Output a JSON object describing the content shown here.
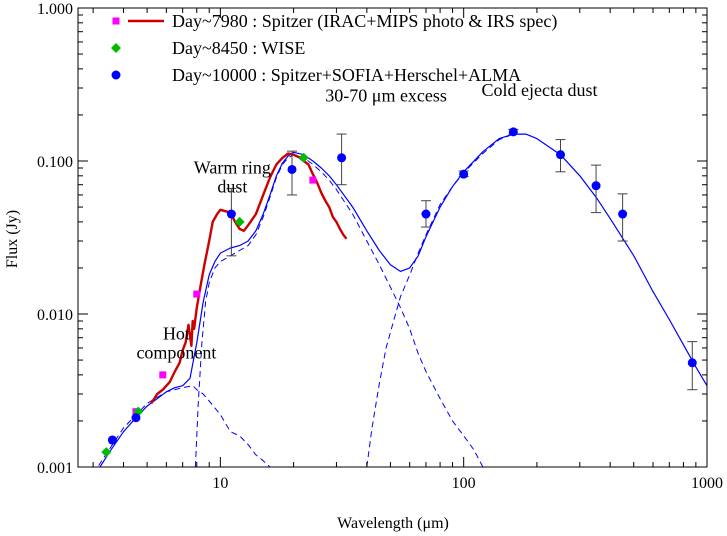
{
  "chart_data": {
    "type": "scatter",
    "xlabel": "Wavelength (μm)",
    "ylabel": "Flux (Jy)",
    "xscale": "log",
    "yscale": "log",
    "xlim": [
      2.6,
      1000
    ],
    "ylim": [
      0.001,
      1.0
    ],
    "xticks": [
      10,
      100,
      1000
    ],
    "xtick_labels": [
      "10",
      "100",
      "1000"
    ],
    "yticks": [
      0.001,
      0.01,
      0.1,
      1.0
    ],
    "ytick_labels": [
      "0.001",
      "0.010",
      "0.100",
      "1.000"
    ],
    "grid": false,
    "legend_position": "top-left",
    "legend": [
      {
        "label": "Day~7980 : Spitzer (IRAC+MIPS photo & IRS spec)",
        "color": "#ff00ff",
        "line_color": "#cc0000",
        "marker": "square"
      },
      {
        "label": "Day~8450 : WISE",
        "color": "#00bb00",
        "marker": "diamond"
      },
      {
        "label": "Day~10000 : Spitzer+SOFIA+Herschel+ALMA",
        "color": "#0000ff",
        "marker": "circle"
      }
    ],
    "annotations": [
      {
        "lines": [
          "Hot",
          "component"
        ],
        "x": 6.6,
        "y": 0.0068
      },
      {
        "lines": [
          "Warm ring",
          "dust"
        ],
        "x": 11.2,
        "y": 0.083
      },
      {
        "lines": [
          "30-70 μm excess"
        ],
        "x": 48,
        "y": 0.245
      },
      {
        "lines": [
          "Cold ejecta dust"
        ],
        "x": 205,
        "y": 0.265
      }
    ],
    "series": [
      {
        "name": "Day~7980 : Spitzer (IRAC+MIPS photo & IRS spec)",
        "kind": "points",
        "marker": "square",
        "color": "#ff00ff",
        "x": [
          3.6,
          4.5,
          5.8,
          8.0,
          24.0
        ],
        "y": [
          0.0015,
          0.0023,
          0.004,
          0.0135,
          0.075
        ]
      },
      {
        "name": "Day~7980 : Spitzer (IRAC+MIPS photo & IRS spec)",
        "kind": "spectrum",
        "color": "#cc0000",
        "x": [
          5.2,
          5.5,
          5.8,
          6.2,
          6.5,
          6.8,
          7.0,
          7.2,
          7.4,
          7.6,
          7.7,
          7.8,
          8.0,
          8.3,
          8.6,
          9.0,
          9.3,
          9.7,
          10.0,
          10.5,
          11.0,
          11.5,
          12.0,
          12.5,
          13.0,
          14.0,
          15.0,
          16.0,
          17.0,
          18.0,
          19.0,
          20.0,
          21.0,
          22.0,
          23.0,
          24.0,
          25.0,
          26.0,
          27.0,
          28.0,
          29.0,
          30.0,
          31.0,
          32.0,
          33.0
        ],
        "y": [
          0.0026,
          0.003,
          0.0032,
          0.0036,
          0.0042,
          0.0048,
          0.0058,
          0.0065,
          0.0085,
          0.0062,
          0.009,
          0.008,
          0.011,
          0.0155,
          0.021,
          0.03,
          0.04,
          0.045,
          0.048,
          0.047,
          0.046,
          0.04,
          0.036,
          0.035,
          0.038,
          0.045,
          0.06,
          0.078,
          0.095,
          0.105,
          0.112,
          0.11,
          0.106,
          0.1,
          0.095,
          0.082,
          0.072,
          0.062,
          0.055,
          0.05,
          0.043,
          0.04,
          0.036,
          0.033,
          0.031
        ]
      },
      {
        "name": "Day~8450 : WISE",
        "kind": "points",
        "marker": "diamond",
        "color": "#00bb00",
        "x": [
          3.4,
          4.6,
          12.0,
          22.0
        ],
        "y": [
          0.00125,
          0.0023,
          0.04,
          0.105
        ]
      },
      {
        "name": "Day~10000 : Spitzer+SOFIA+Herschel+ALMA",
        "kind": "points",
        "marker": "circle",
        "color": "#0000ff",
        "x": [
          3.6,
          4.5,
          11.1,
          19.7,
          31.5,
          70.0,
          100.0,
          160.0,
          250.0,
          350.0,
          450.0,
          870.0
        ],
        "y": [
          0.0015,
          0.0021,
          0.045,
          0.088,
          0.105,
          0.045,
          0.082,
          0.155,
          0.11,
          0.069,
          0.045,
          0.0048
        ],
        "yerr_low": [
          0.0,
          0.0,
          0.021,
          0.028,
          0.035,
          0.008,
          0.003,
          0.005,
          0.025,
          0.023,
          0.015,
          0.0016
        ],
        "yerr_high": [
          0.0,
          0.0,
          0.021,
          0.028,
          0.045,
          0.01,
          0.004,
          0.006,
          0.028,
          0.025,
          0.016,
          0.0018
        ]
      },
      {
        "name": "",
        "kind": "model-total",
        "color": "#0000ff",
        "x": [
          3.0,
          3.5,
          4.0,
          4.5,
          5.0,
          5.5,
          6.0,
          6.5,
          7.0,
          7.5,
          8.0,
          8.5,
          9.0,
          9.5,
          10.0,
          11.0,
          12.0,
          13.0,
          14.0,
          15.0,
          16.0,
          17.0,
          18.0,
          19.0,
          20.0,
          22.0,
          24.0,
          26.0,
          28.0,
          30.0,
          35.0,
          40.0,
          45.0,
          50.0,
          55.0,
          60.0,
          65.0,
          70.0,
          80.0,
          90.0,
          100.0,
          120.0,
          140.0,
          160.0,
          180.0,
          200.0,
          250.0,
          300.0,
          350.0,
          400.0,
          500.0,
          600.0,
          700.0,
          800.0,
          900.0,
          1000.0
        ],
        "y": [
          0.00085,
          0.00125,
          0.0017,
          0.0021,
          0.0025,
          0.0028,
          0.0031,
          0.0033,
          0.0034,
          0.0038,
          0.0065,
          0.012,
          0.018,
          0.022,
          0.025,
          0.027,
          0.028,
          0.03,
          0.035,
          0.045,
          0.06,
          0.08,
          0.097,
          0.108,
          0.114,
          0.11,
          0.1,
          0.09,
          0.08,
          0.07,
          0.05,
          0.035,
          0.026,
          0.021,
          0.019,
          0.02,
          0.024,
          0.032,
          0.05,
          0.068,
          0.085,
          0.115,
          0.14,
          0.15,
          0.15,
          0.14,
          0.11,
          0.08,
          0.058,
          0.042,
          0.024,
          0.014,
          0.0092,
          0.0063,
          0.0045,
          0.0034
        ]
      },
      {
        "name": "",
        "kind": "model-hot",
        "color": "#0000ff",
        "x": [
          3.0,
          4.0,
          5.0,
          6.0,
          7.0,
          7.7,
          8.0,
          8.5,
          9.0,
          10.0,
          11.0,
          12.0,
          13.0,
          14.0,
          15.0,
          16.0
        ],
        "y": [
          0.0009,
          0.0018,
          0.0026,
          0.0031,
          0.0033,
          0.0034,
          0.0032,
          0.003,
          0.0027,
          0.0022,
          0.0017,
          0.0016,
          0.0014,
          0.0012,
          0.0011,
          0.001
        ]
      },
      {
        "name": "",
        "kind": "model-warm",
        "color": "#0000ff",
        "x": [
          7.9,
          8.1,
          8.4,
          8.7,
          9.0,
          9.5,
          10.0,
          11.0,
          12.0,
          13.0,
          14.0,
          15.0,
          16.0,
          17.0,
          18.0,
          19.0,
          20.0,
          22.0,
          24.0,
          26.0,
          28.0,
          30.0,
          35.0,
          40.0,
          45.0,
          50.0,
          55.0,
          60.0,
          65.0,
          70.0,
          80.0,
          90.0,
          100.0,
          110.0,
          120.0
        ],
        "y": [
          0.001,
          0.0025,
          0.0065,
          0.012,
          0.016,
          0.02,
          0.022,
          0.024,
          0.026,
          0.028,
          0.033,
          0.043,
          0.058,
          0.078,
          0.095,
          0.105,
          0.11,
          0.105,
          0.095,
          0.085,
          0.075,
          0.065,
          0.045,
          0.03,
          0.021,
          0.015,
          0.011,
          0.008,
          0.0055,
          0.0042,
          0.0028,
          0.002,
          0.0016,
          0.0013,
          0.001
        ]
      },
      {
        "name": "",
        "kind": "model-cold",
        "color": "#0000ff",
        "x": [
          40.0,
          42.0,
          45.0,
          48.0,
          52.0,
          55.0,
          60.0,
          65.0,
          70.0,
          80.0,
          90.0,
          100.0,
          120.0,
          140.0,
          160.0,
          180.0
        ],
        "y": [
          0.001,
          0.0018,
          0.0035,
          0.006,
          0.0095,
          0.013,
          0.018,
          0.025,
          0.033,
          0.052,
          0.068,
          0.084,
          0.112,
          0.138,
          0.15,
          0.15
        ]
      }
    ]
  }
}
